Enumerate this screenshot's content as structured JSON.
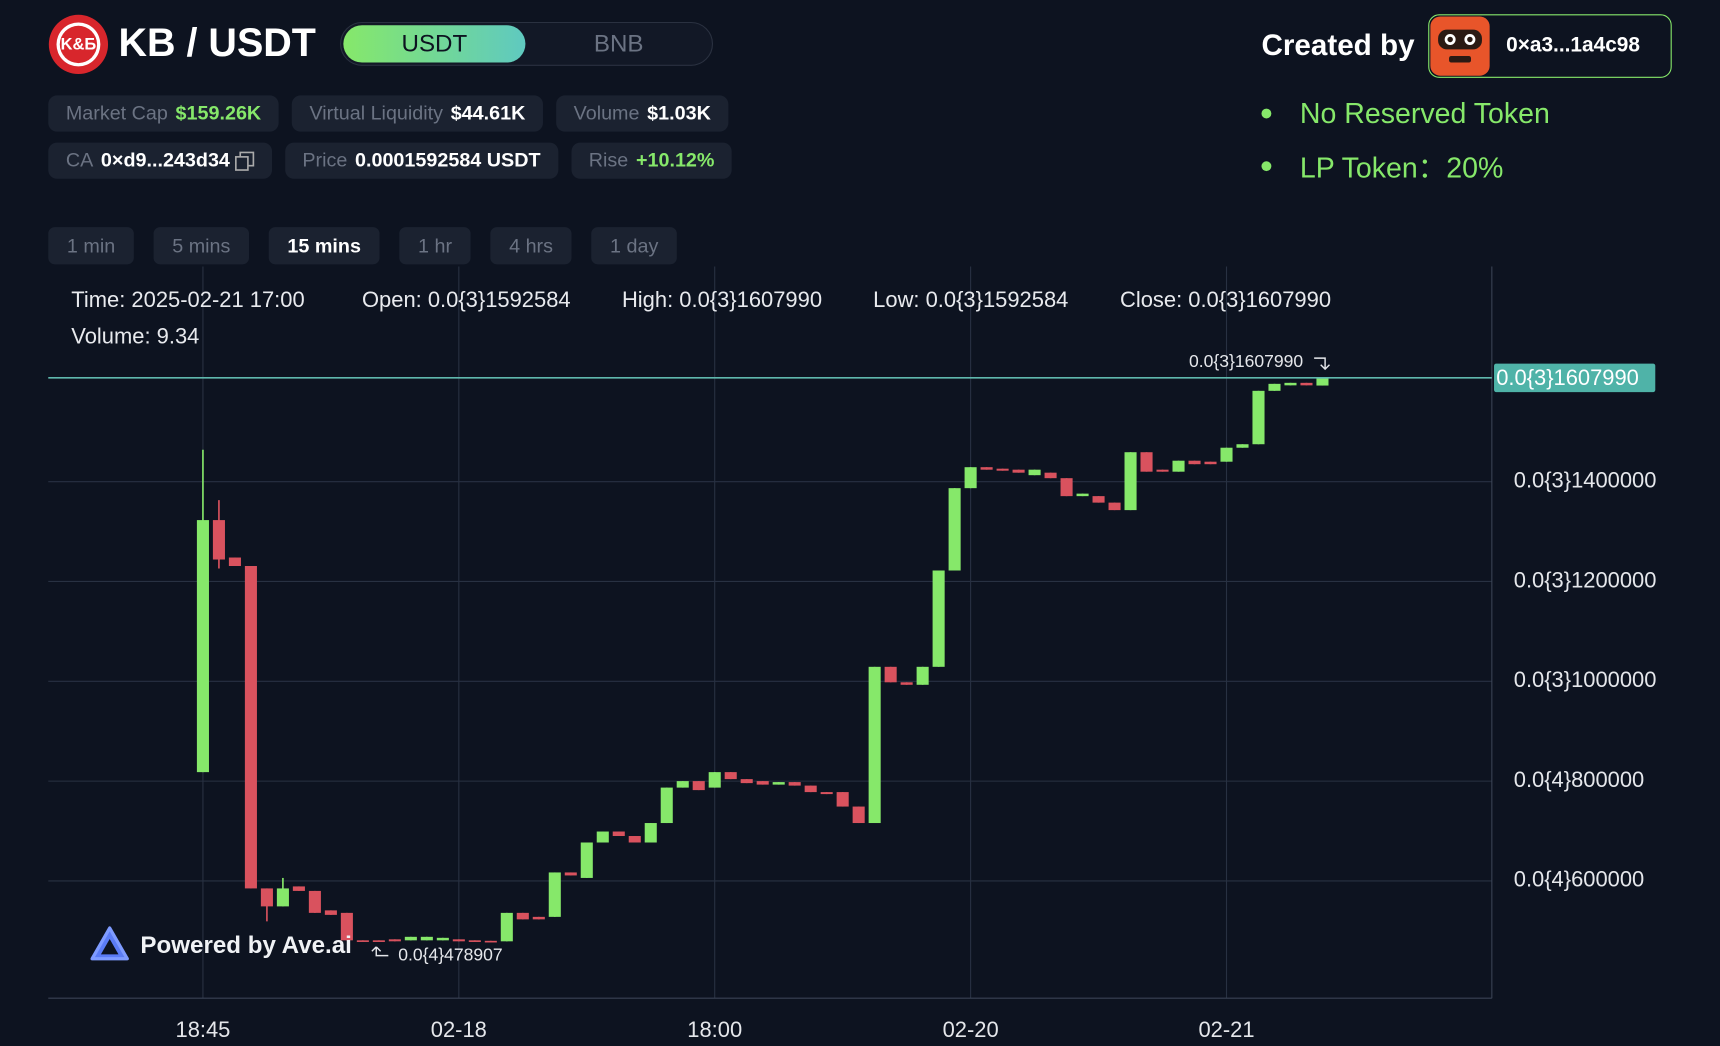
{
  "header": {
    "logo": "K&Б",
    "pair": "KB / USDT",
    "tabs": [
      "USDT",
      "BNB"
    ],
    "created_by": "Created by",
    "creator": "0×a3...1a4c98",
    "stats": [
      {
        "label": "Market Cap",
        "value": "$159.26K"
      },
      {
        "label": "Virtual Liquidity",
        "value": "$44.61K"
      },
      {
        "label": "Volume",
        "value": "$1.03K"
      },
      {
        "label": "CA",
        "value": "0×d9...243d34"
      },
      {
        "label": "Price",
        "value": "0.0001592584 USDT"
      },
      {
        "label": "Rise",
        "value": "+10.12%"
      }
    ],
    "features": [
      "No Reserved Token",
      "LP Token：20%"
    ]
  },
  "intervals": [
    "1 min",
    "5 mins",
    "15 mins",
    "1 hr",
    "4 hrs",
    "1 day"
  ],
  "watermark": "Powered by Ave.ai",
  "chart_data": {
    "type": "candlestick",
    "up_color": "#86e86a",
    "down_color": "#d9525e",
    "grid": true,
    "tooltip": {
      "time": "Time: 2025-02-21 17:00",
      "open": "Open: 0.0{3}1592584",
      "high": "High: 0.0{3}1607990",
      "low": "Low: 0.0{3}1592584",
      "close": "Close: 0.0{3}1607990",
      "volume": "Volume: 9.34"
    },
    "categories": [
      "18:45",
      null,
      null,
      null,
      null,
      null,
      null,
      null,
      null,
      null,
      null,
      null,
      null,
      null,
      null,
      null,
      "02-18",
      null,
      null,
      null,
      null,
      null,
      null,
      null,
      null,
      null,
      null,
      null,
      null,
      null,
      null,
      null,
      "18:00",
      null,
      null,
      null,
      null,
      null,
      null,
      null,
      null,
      null,
      null,
      null,
      null,
      null,
      null,
      null,
      "02-20",
      null,
      null,
      null,
      null,
      null,
      null,
      null,
      null,
      null,
      null,
      null,
      null,
      null,
      null,
      null,
      "02-21",
      null,
      null,
      null,
      null,
      null,
      null
    ],
    "open": [
      8.18e-05,
      0.0001323,
      0.0001248,
      0.0001231,
      5.85e-05,
      5.49e-05,
      5.89e-05,
      5.8e-05,
      5.41e-05,
      5.36e-05,
      4.81e-05,
      4.81e-05,
      4.83e-05,
      4.81e-05,
      4.81e-05,
      4.81e-05,
      4.83e-05,
      4.81e-05,
      4.8e-05,
      4.79e-05,
      5.36e-05,
      5.28e-05,
      5.28e-05,
      6.17e-05,
      6.06e-05,
      6.77e-05,
      6.99e-05,
      6.9e-05,
      6.77e-05,
      7.16e-05,
      7.87e-05,
      8e-05,
      7.87e-05,
      8.18e-05,
      8.04e-05,
      8e-05,
      7.93e-05,
      7.98e-05,
      7.91e-05,
      7.78e-05,
      7.78e-05,
      7.49e-05,
      7.16e-05,
      0.0001029,
      9.98e-05,
      9.93e-05,
      0.0001029,
      0.0001222,
      0.0001387,
      0.0001429,
      0.0001426,
      0.0001424,
      0.0001413,
      0.0001418,
      0.0001407,
      0.0001371,
      0.0001371,
      0.0001358,
      0.0001343,
      0.0001459,
      0.0001424,
      0.000142,
      0.0001442,
      0.000144,
      0.000144,
      0.0001468,
      0.0001475,
      0.0001582,
      0.0001593,
      0.0001598,
      0.0001592584
    ],
    "high": [
      0.0001464,
      0.0001363,
      0.0001248,
      0.0001231,
      5.85e-05,
      6.06e-05,
      5.89e-05,
      5.8e-05,
      5.41e-05,
      5.36e-05,
      4.81e-05,
      4.81e-05,
      4.83e-05,
      4.88e-05,
      4.88e-05,
      4.86e-05,
      4.83e-05,
      4.81e-05,
      4.8e-05,
      5.36e-05,
      5.36e-05,
      5.28e-05,
      6.17e-05,
      6.17e-05,
      6.77e-05,
      6.99e-05,
      6.99e-05,
      6.9e-05,
      7.16e-05,
      7.87e-05,
      8e-05,
      8e-05,
      8.18e-05,
      8.18e-05,
      8.04e-05,
      8e-05,
      7.98e-05,
      7.98e-05,
      7.91e-05,
      7.78e-05,
      7.78e-05,
      7.49e-05,
      0.0001029,
      0.0001029,
      9.98e-05,
      0.0001029,
      0.0001222,
      0.0001387,
      0.0001429,
      0.0001429,
      0.0001426,
      0.0001424,
      0.0001424,
      0.0001418,
      0.0001407,
      0.0001376,
      0.0001371,
      0.0001358,
      0.0001459,
      0.0001459,
      0.0001424,
      0.0001442,
      0.0001442,
      0.000144,
      0.0001468,
      0.0001475,
      0.0001582,
      0.0001596,
      0.0001598,
      0.0001598,
      0.000160799
    ],
    "low": [
      8.18e-05,
      0.0001226,
      0.0001231,
      5.85e-05,
      5.19e-05,
      5.49e-05,
      5.8e-05,
      5.36e-05,
      5.32e-05,
      4.81e-05,
      4.79e-05,
      4.79e-05,
      4.79e-05,
      4.81e-05,
      4.81e-05,
      4.81e-05,
      4.79e-05,
      4.79e-05,
      4.78907e-05,
      4.79e-05,
      5.23e-05,
      5.23e-05,
      5.28e-05,
      6.11e-05,
      6.06e-05,
      6.77e-05,
      6.9e-05,
      6.77e-05,
      6.77e-05,
      7.16e-05,
      7.87e-05,
      7.82e-05,
      7.87e-05,
      8.04e-05,
      7.96e-05,
      7.93e-05,
      7.93e-05,
      7.91e-05,
      7.78e-05,
      7.74e-05,
      7.49e-05,
      7.16e-05,
      7.16e-05,
      9.98e-05,
      9.93e-05,
      9.93e-05,
      0.0001029,
      0.0001222,
      0.0001387,
      0.0001424,
      0.0001422,
      0.0001418,
      0.0001413,
      0.0001407,
      0.0001371,
      0.0001371,
      0.0001358,
      0.0001343,
      0.0001343,
      0.000142,
      0.000142,
      0.000142,
      0.0001435,
      0.0001435,
      0.000144,
      0.0001468,
      0.0001475,
      0.0001582,
      0.0001593,
      0.0001593,
      0.0001592584
    ],
    "close": [
      0.0001323,
      0.0001244,
      0.0001231,
      5.85e-05,
      5.49e-05,
      5.85e-05,
      5.8e-05,
      5.36e-05,
      5.32e-05,
      4.81e-05,
      4.79e-05,
      4.79e-05,
      4.79e-05,
      4.88e-05,
      4.88e-05,
      4.86e-05,
      4.79e-05,
      4.79e-05,
      4.79e-05,
      5.36e-05,
      5.23e-05,
      5.23e-05,
      6.17e-05,
      6.11e-05,
      6.77e-05,
      6.99e-05,
      6.9e-05,
      6.77e-05,
      7.16e-05,
      7.87e-05,
      8e-05,
      7.82e-05,
      8.18e-05,
      8.04e-05,
      7.96e-05,
      7.93e-05,
      7.98e-05,
      7.91e-05,
      7.78e-05,
      7.74e-05,
      7.49e-05,
      7.16e-05,
      0.0001029,
      9.98e-05,
      9.93e-05,
      0.0001029,
      0.0001222,
      0.0001387,
      0.0001429,
      0.0001424,
      0.0001422,
      0.0001418,
      0.0001424,
      0.0001407,
      0.0001371,
      0.0001376,
      0.0001358,
      0.0001343,
      0.0001459,
      0.000142,
      0.000142,
      0.0001442,
      0.0001435,
      0.0001435,
      0.0001468,
      0.0001475,
      0.0001582,
      0.0001596,
      0.0001598,
      0.0001593,
      0.000160799
    ],
    "ylim": [
      3.65e-05,
      0.0001831
    ],
    "yticks": [
      {
        "value": 6e-05,
        "label": "0.0{4}600000"
      },
      {
        "value": 8e-05,
        "label": "0.0{4}800000"
      },
      {
        "value": 0.0001,
        "label": "0.0{3}1000000"
      },
      {
        "value": 0.00012,
        "label": "0.0{3}1200000"
      },
      {
        "value": 0.00014,
        "label": "0.0{3}1400000"
      }
    ],
    "high_label": {
      "value": 0.000160799,
      "label": "0.0{3}1607990"
    },
    "low_label": {
      "value": 4.78907e-05,
      "label": "0.0{4}478907"
    },
    "last_price": {
      "value": 0.000160799,
      "label": "0.0{3}1607990"
    }
  }
}
